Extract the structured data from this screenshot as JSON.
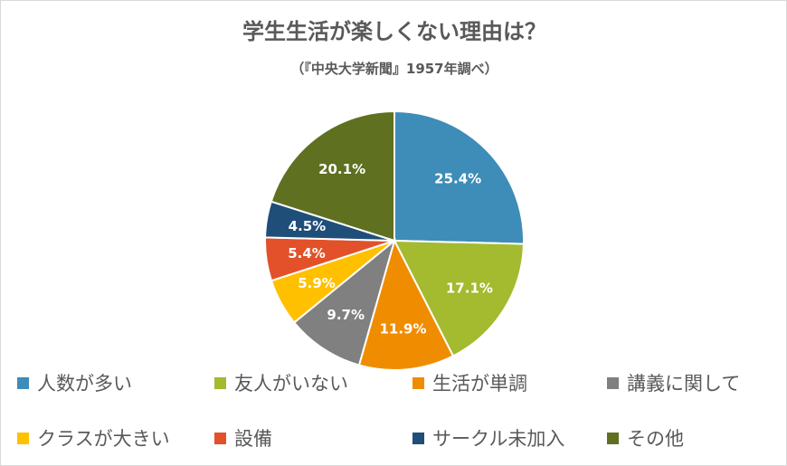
{
  "chart_data": {
    "type": "pie",
    "title": "学生生活が楽しくない理由は？",
    "subtitle": "（『中央大学新聞』1957年調べ）",
    "slices": [
      {
        "label": "人数が多い",
        "value": 25.4,
        "display": "25.4%",
        "color": "#3E8CB8"
      },
      {
        "label": "友人がいない",
        "value": 17.1,
        "display": "17.1%",
        "color": "#A4BA2F"
      },
      {
        "label": "生活が単調",
        "value": 11.9,
        "display": "11.9%",
        "color": "#F08C00"
      },
      {
        "label": "講義に関して",
        "value": 9.7,
        "display": "9.7%",
        "color": "#808080"
      },
      {
        "label": "クラスが大きい",
        "value": 5.9,
        "display": "5.9%",
        "color": "#FFC000"
      },
      {
        "label": "設備",
        "value": 5.4,
        "display": "5.4%",
        "color": "#E2512A"
      },
      {
        "label": "サークル未加入",
        "value": 4.5,
        "display": "4.5%",
        "color": "#1F4E79"
      },
      {
        "label": "その他",
        "value": 20.1,
        "display": "20.1%",
        "color": "#5F7020"
      }
    ],
    "legend_position": "bottom",
    "label_color": "#ffffff"
  }
}
